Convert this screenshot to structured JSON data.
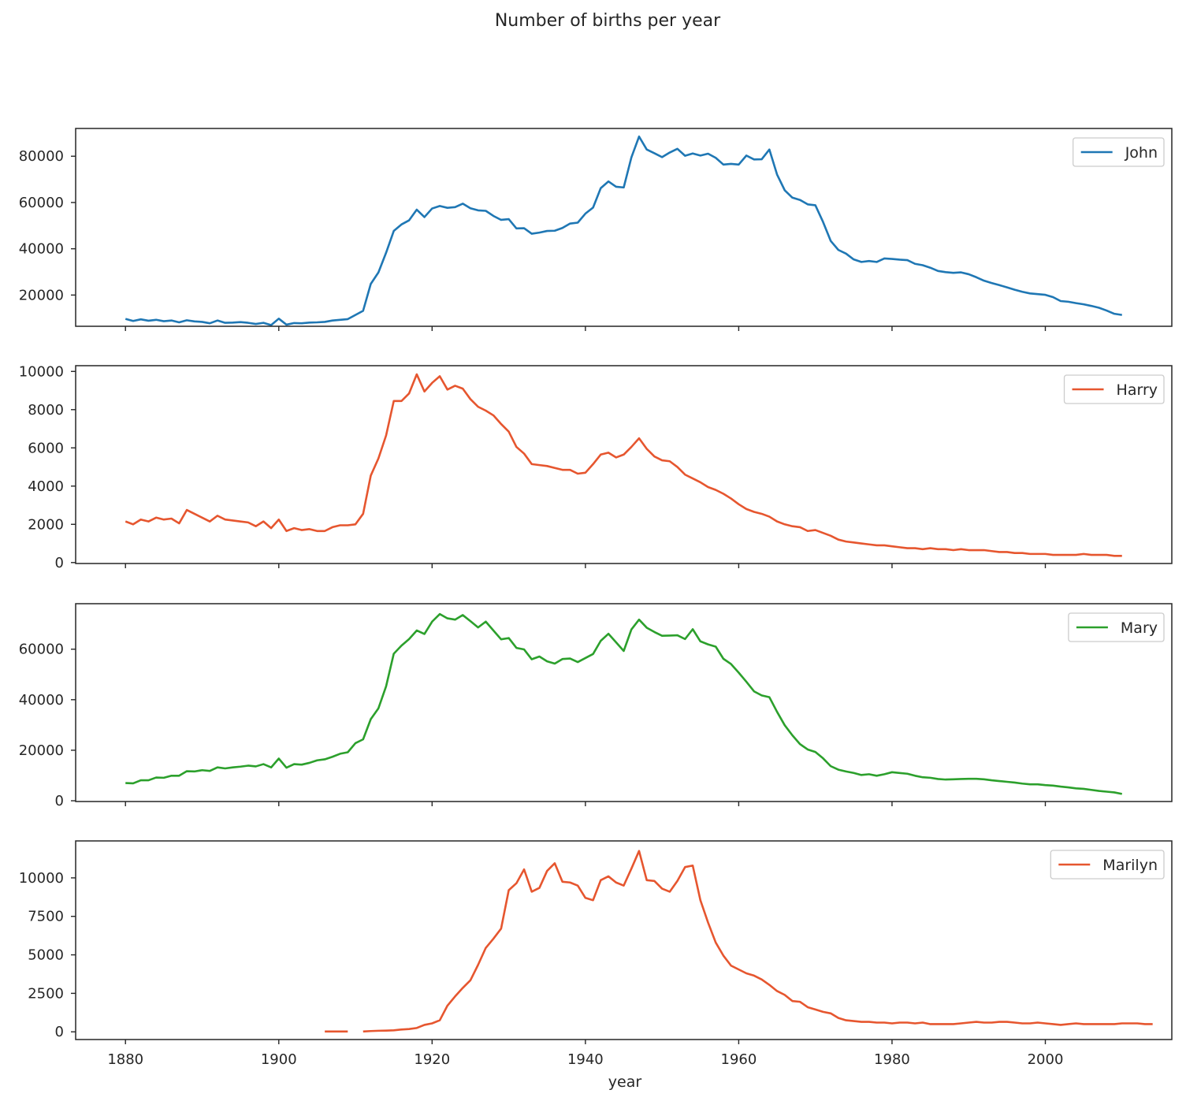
{
  "chart_data": {
    "type": "line",
    "title": "Number of births per year",
    "xlabel": "year",
    "xlim": [
      1873.5,
      2016.5
    ],
    "x_ticks": [
      1880,
      1900,
      1920,
      1940,
      1960,
      1980,
      2000
    ],
    "x_tick_labels": [
      "1880",
      "1900",
      "1920",
      "1940",
      "1960",
      "1980",
      "2000"
    ],
    "legend_position": "top-right",
    "sharex": true,
    "subplots": [
      {
        "name": "John",
        "color": "#1f77b4",
        "ylim": [
          6500,
          92000
        ],
        "y_ticks": [
          20000,
          40000,
          60000,
          80000
        ],
        "y_tick_labels": [
          "20000",
          "40000",
          "60000",
          "80000"
        ],
        "x_start": 1880,
        "values": [
          9700,
          8800,
          9500,
          8900,
          9300,
          8700,
          9000,
          8200,
          9100,
          8600,
          8400,
          7800,
          9000,
          8000,
          8100,
          8300,
          8000,
          7500,
          8000,
          7000,
          9800,
          7200,
          7900,
          7800,
          8100,
          8200,
          8400,
          9000,
          9300,
          9600,
          11400,
          13200,
          24800,
          29800,
          38300,
          47700,
          50500,
          52300,
          56900,
          53700,
          57400,
          58500,
          57700,
          58000,
          59500,
          57500,
          56600,
          56400,
          54200,
          52500,
          52800,
          48800,
          48900,
          46500,
          47000,
          47700,
          47800,
          49000,
          50900,
          51300,
          55200,
          57800,
          66200,
          69100,
          66800,
          66500,
          79500,
          88500,
          82900,
          81300,
          79600,
          81600,
          83200,
          80200,
          81200,
          80300,
          81100,
          79300,
          76400,
          76700,
          76400,
          80300,
          78600,
          78700,
          82900,
          72100,
          65300,
          62100,
          61100,
          59200,
          58800,
          51600,
          43400,
          39500,
          37900,
          35400,
          34300,
          34700,
          34300,
          35800,
          35600,
          35300,
          35100,
          33500,
          32900,
          31800,
          30400,
          29900,
          29600,
          29800,
          29000,
          27700,
          26200,
          25200,
          24300,
          23300,
          22300,
          21400,
          20700,
          20400,
          20100,
          19100,
          17400,
          17100,
          16500,
          16000,
          15300,
          14500,
          13300,
          11900,
          11400
        ]
      },
      {
        "name": "Harry",
        "color": "#e6562f",
        "ylim": [
          -50,
          10300
        ],
        "y_ticks": [
          0,
          2000,
          4000,
          6000,
          8000,
          10000
        ],
        "y_tick_labels": [
          "0",
          "2000",
          "4000",
          "6000",
          "8000",
          "10000"
        ],
        "x_start": 1880,
        "values": [
          2150,
          2000,
          2250,
          2150,
          2350,
          2250,
          2300,
          2050,
          2750,
          2550,
          2350,
          2150,
          2450,
          2250,
          2200,
          2150,
          2100,
          1900,
          2150,
          1800,
          2250,
          1650,
          1800,
          1700,
          1750,
          1650,
          1650,
          1850,
          1950,
          1950,
          2000,
          2550,
          4550,
          5450,
          6650,
          8450,
          8450,
          8850,
          9850,
          8950,
          9400,
          9750,
          9050,
          9250,
          9100,
          8550,
          8150,
          7950,
          7700,
          7250,
          6850,
          6050,
          5700,
          5150,
          5100,
          5050,
          4950,
          4850,
          4850,
          4650,
          4700,
          5150,
          5650,
          5750,
          5500,
          5650,
          6050,
          6500,
          5950,
          5550,
          5350,
          5300,
          5000,
          4600,
          4400,
          4200,
          3950,
          3800,
          3600,
          3350,
          3050,
          2800,
          2650,
          2550,
          2400,
          2150,
          2000,
          1900,
          1850,
          1650,
          1700,
          1550,
          1400,
          1200,
          1100,
          1050,
          1000,
          950,
          900,
          900,
          850,
          800,
          750,
          750,
          700,
          750,
          700,
          700,
          650,
          700,
          650,
          650,
          650,
          600,
          550,
          550,
          500,
          500,
          450,
          450,
          450,
          400,
          400,
          400,
          400,
          450,
          400,
          400,
          400,
          350,
          350
        ]
      },
      {
        "name": "Mary",
        "color": "#2ca02c",
        "ylim": [
          -300,
          78000
        ],
        "y_ticks": [
          0,
          20000,
          40000,
          60000
        ],
        "y_tick_labels": [
          "0",
          "20000",
          "40000",
          "60000"
        ],
        "x_start": 1880,
        "values": [
          7000,
          6900,
          8100,
          8100,
          9200,
          9100,
          9900,
          9900,
          11700,
          11600,
          12100,
          11800,
          13200,
          12800,
          13200,
          13500,
          13900,
          13600,
          14500,
          13200,
          16700,
          13100,
          14500,
          14300,
          15000,
          16000,
          16400,
          17400,
          18600,
          19200,
          22800,
          24300,
          32300,
          36600,
          45300,
          58200,
          61400,
          64000,
          67400,
          66000,
          70900,
          73900,
          72200,
          71700,
          73500,
          71100,
          68600,
          70900,
          67400,
          63900,
          64400,
          60500,
          59900,
          56000,
          57100,
          55200,
          54300,
          56100,
          56300,
          54900,
          56500,
          58100,
          63300,
          66100,
          62700,
          59300,
          67800,
          71700,
          68500,
          66800,
          65300,
          65400,
          65500,
          64000,
          67900,
          63100,
          61900,
          61000,
          56200,
          54100,
          50700,
          47100,
          43300,
          41700,
          41000,
          35200,
          29900,
          25900,
          22400,
          20300,
          19300,
          16800,
          13700,
          12300,
          11600,
          11000,
          10200,
          10500,
          9900,
          10500,
          11300,
          11000,
          10700,
          9900,
          9300,
          9100,
          8600,
          8400,
          8500,
          8600,
          8700,
          8700,
          8500,
          8100,
          7800,
          7500,
          7200,
          6800,
          6500,
          6500,
          6200,
          6000,
          5600,
          5300,
          4900,
          4700,
          4300,
          3900,
          3600,
          3300,
          2700
        ]
      },
      {
        "name": "Marilyn",
        "color": "#e6562f",
        "ylim": [
          -500,
          12400
        ],
        "y_ticks": [
          0,
          2500,
          5000,
          7500,
          10000
        ],
        "y_tick_labels": [
          "0",
          "2500",
          "5000",
          "7500",
          "10000"
        ],
        "x_start": 1906,
        "values": [
          20,
          20,
          20,
          20,
          null,
          20,
          50,
          70,
          80,
          100,
          150,
          180,
          250,
          450,
          550,
          750,
          1700,
          2300,
          2850,
          3350,
          4350,
          5450,
          6050,
          6700,
          9200,
          9650,
          10550,
          9100,
          9350,
          10450,
          10950,
          9750,
          9700,
          9500,
          8700,
          8550,
          9850,
          10100,
          9700,
          9500,
          10600,
          11750,
          9850,
          9800,
          9300,
          9100,
          9800,
          10700,
          10800,
          8550,
          7100,
          5800,
          4950,
          4300,
          4050,
          3800,
          3650,
          3400,
          3050,
          2650,
          2400,
          2000,
          1950,
          1600,
          1450,
          1300,
          1200,
          900,
          750,
          700,
          650,
          650,
          600,
          600,
          550,
          600,
          600,
          550,
          600,
          500,
          500,
          500,
          500,
          550,
          600,
          650,
          600,
          600,
          650,
          650,
          600,
          550,
          550,
          600,
          550,
          500,
          450,
          500,
          550,
          500,
          500,
          500,
          500,
          500,
          550,
          550,
          550,
          500,
          500
        ]
      }
    ]
  }
}
